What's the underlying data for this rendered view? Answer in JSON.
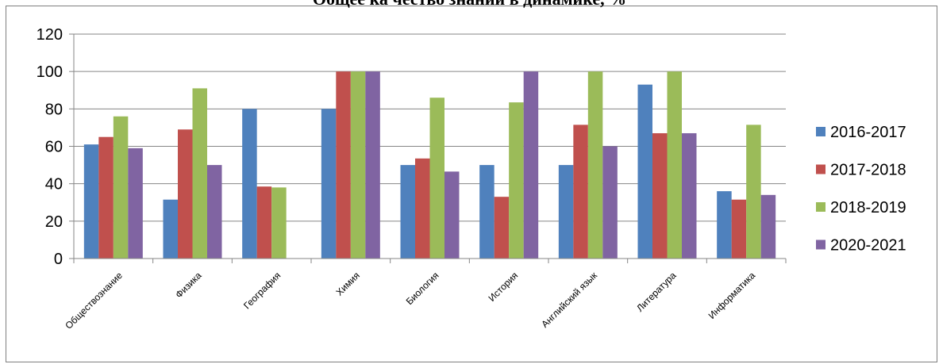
{
  "chart_data": {
    "type": "bar",
    "title": "Общее ка чество знаний в динамике, %",
    "categories": [
      "Обществознание",
      "Физика",
      "География",
      "Химия",
      "Биология",
      "История",
      "Английский язык",
      "Литература",
      "Информатика"
    ],
    "series": [
      {
        "name": "2016-2017",
        "color": "#4f81bd",
        "values": [
          61,
          31.5,
          80,
          80,
          50,
          50,
          50,
          93,
          36
        ]
      },
      {
        "name": "2017-2018",
        "color": "#c0504d",
        "values": [
          65,
          69,
          38.5,
          100,
          53.5,
          33,
          71.5,
          67,
          31.5
        ]
      },
      {
        "name": "2018-2019",
        "color": "#9bbb59",
        "values": [
          76,
          91,
          38,
          100,
          86,
          83.5,
          100,
          100,
          71.5
        ]
      },
      {
        "name": "2020-2021",
        "color": "#8064a2",
        "values": [
          59,
          50,
          null,
          100,
          46.5,
          100,
          60,
          67,
          34
        ]
      }
    ],
    "ylim": [
      0,
      120
    ],
    "yticks": [
      0,
      20,
      40,
      60,
      80,
      100,
      120
    ],
    "grid": true,
    "legend": "right"
  }
}
